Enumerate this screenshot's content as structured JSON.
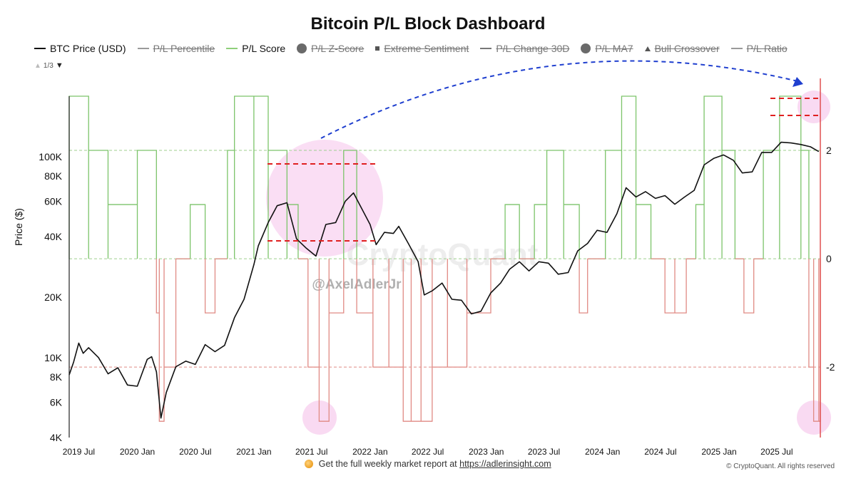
{
  "title": "Bitcoin P/L Block Dashboard",
  "legend": [
    {
      "label": "BTC Price (USD)",
      "icon": "line",
      "color": "#111111",
      "state": "active"
    },
    {
      "label": "P/L Percentile",
      "icon": "line",
      "color": "#9a9a9a",
      "state": "hidden"
    },
    {
      "label": "P/L Score",
      "icon": "line",
      "color": "#8fcf7a",
      "state": "active"
    },
    {
      "label": "P/L Z-Score",
      "icon": "dot",
      "color": "#6a6a6a",
      "state": "hidden"
    },
    {
      "label": "Extreme Sentiment",
      "icon": "square",
      "color": "#555555",
      "state": "hidden"
    },
    {
      "label": "P/L Change 30D",
      "icon": "line",
      "color": "#777777",
      "state": "hidden"
    },
    {
      "label": "P/L MA7",
      "icon": "dot",
      "color": "#6a6a6a",
      "state": "hidden"
    },
    {
      "label": "Bull Crossover",
      "icon": "triangle",
      "color": "#555555",
      "state": "hidden"
    },
    {
      "label": "P/L Ratio",
      "icon": "line",
      "color": "#9a9a9a",
      "state": "hidden"
    }
  ],
  "pager": {
    "text": "1/3"
  },
  "watermark": {
    "brand": "CryptoQuant",
    "handle": "@AxelAdlerJr"
  },
  "footer": {
    "text": "Get the full weekly market report at",
    "link": "https://adlerinsight.com"
  },
  "copyright": "© CryptoQuant. All rights reserved",
  "colors": {
    "price": "#111111",
    "score_pos": "#7cc46a",
    "score_neg": "#e08a84",
    "right_axis": "#e05050",
    "highlight": "#f3b6e6",
    "arrow": "#1f3fcf",
    "range": "#e02020"
  },
  "chart_data": {
    "type": "line",
    "ylabel": "Price ($)",
    "y_scale": "log",
    "ylim": [
      4000,
      200000
    ],
    "y_ticks": [
      4000,
      6000,
      8000,
      10000,
      20000,
      40000,
      60000,
      80000,
      100000
    ],
    "y_tick_labels": [
      "4K",
      "6K",
      "8K",
      "10K",
      "20K",
      "40K",
      "60K",
      "80K",
      "100K"
    ],
    "y2lim": [
      -3.3,
      3
    ],
    "y2_ticks": [
      -2,
      0,
      2
    ],
    "y2_tick_labels": [
      "-2",
      "0",
      "2"
    ],
    "xlim": [
      "2019-06-01",
      "2025-11-15"
    ],
    "x_ticks": [
      "2019-07-01",
      "2020-01-01",
      "2020-07-01",
      "2021-01-01",
      "2021-07-01",
      "2022-01-01",
      "2022-07-01",
      "2023-01-01",
      "2023-07-01",
      "2024-01-01",
      "2024-07-01",
      "2025-01-01",
      "2025-07-01"
    ],
    "x_tick_labels": [
      "2019 Jul",
      "2020 Jan",
      "2020 Jul",
      "2021 Jan",
      "2021 Jul",
      "2022 Jan",
      "2022 Jul",
      "2023 Jan",
      "2023 Jul",
      "2024 Jan",
      "2024 Jul",
      "2025 Jan",
      "2025 Jul"
    ],
    "reference_lines": [
      2,
      0,
      -2
    ],
    "series": [
      {
        "name": "BTC Price (USD)",
        "axis": "left",
        "x": [
          "2019-06-01",
          "2019-06-15",
          "2019-07-01",
          "2019-07-15",
          "2019-08-01",
          "2019-09-01",
          "2019-10-01",
          "2019-11-01",
          "2019-12-01",
          "2020-01-01",
          "2020-02-01",
          "2020-02-15",
          "2020-03-01",
          "2020-03-15",
          "2020-04-01",
          "2020-05-01",
          "2020-06-01",
          "2020-07-01",
          "2020-08-01",
          "2020-09-01",
          "2020-10-01",
          "2020-11-01",
          "2020-12-01",
          "2021-01-01",
          "2021-01-15",
          "2021-02-15",
          "2021-03-15",
          "2021-04-15",
          "2021-05-15",
          "2021-06-15",
          "2021-07-15",
          "2021-08-15",
          "2021-09-15",
          "2021-10-15",
          "2021-11-10",
          "2021-12-01",
          "2022-01-01",
          "2022-01-20",
          "2022-02-15",
          "2022-03-15",
          "2022-04-01",
          "2022-05-01",
          "2022-06-01",
          "2022-06-20",
          "2022-07-15",
          "2022-08-15",
          "2022-09-15",
          "2022-10-15",
          "2022-11-15",
          "2022-12-15",
          "2023-01-15",
          "2023-02-15",
          "2023-03-15",
          "2023-04-15",
          "2023-05-15",
          "2023-06-15",
          "2023-07-15",
          "2023-08-15",
          "2023-09-15",
          "2023-10-15",
          "2023-11-15",
          "2023-12-15",
          "2024-01-15",
          "2024-02-15",
          "2024-03-15",
          "2024-04-15",
          "2024-05-15",
          "2024-06-15",
          "2024-07-15",
          "2024-08-15",
          "2024-09-15",
          "2024-10-15",
          "2024-11-15",
          "2024-12-15",
          "2025-01-15",
          "2025-02-15",
          "2025-03-15",
          "2025-04-15",
          "2025-05-15",
          "2025-06-15",
          "2025-07-15",
          "2025-08-15",
          "2025-09-15",
          "2025-10-15",
          "2025-11-10"
        ],
        "values": [
          8200,
          9500,
          11800,
          10500,
          11200,
          10000,
          8300,
          8900,
          7300,
          7200,
          9800,
          10100,
          8500,
          5000,
          6700,
          9000,
          9600,
          9250,
          11600,
          10700,
          11500,
          15800,
          19500,
          29000,
          36000,
          47000,
          57000,
          59000,
          39000,
          35000,
          32000,
          46000,
          47000,
          60000,
          66000,
          57000,
          46000,
          36500,
          42000,
          41500,
          45000,
          37000,
          30000,
          20500,
          21500,
          23500,
          19500,
          19300,
          16500,
          17000,
          21000,
          23500,
          27500,
          30000,
          27000,
          30000,
          29500,
          26000,
          26500,
          34000,
          37000,
          43000,
          42000,
          52000,
          70000,
          63000,
          67000,
          62000,
          64000,
          58000,
          63000,
          68000,
          91000,
          98000,
          102000,
          96000,
          83000,
          84000,
          105000,
          105000,
          118000,
          117000,
          115000,
          112000,
          106000
        ]
      },
      {
        "name": "P/L Score",
        "axis": "right",
        "x": [
          "2019-06-01",
          "2019-08-01",
          "2019-10-01",
          "2020-01-01",
          "2020-03-01",
          "2020-03-10",
          "2020-03-25",
          "2020-05-01",
          "2020-06-15",
          "2020-08-01",
          "2020-09-01",
          "2020-10-10",
          "2020-11-01",
          "2021-01-01",
          "2021-02-15",
          "2021-04-15",
          "2021-05-20",
          "2021-06-20",
          "2021-07-25",
          "2021-08-25",
          "2021-10-10",
          "2021-11-20",
          "2022-01-10",
          "2022-03-01",
          "2022-04-15",
          "2022-05-10",
          "2022-06-10",
          "2022-07-15",
          "2022-09-01",
          "2022-11-01",
          "2023-01-15",
          "2023-03-01",
          "2023-04-15",
          "2023-06-01",
          "2023-07-10",
          "2023-09-01",
          "2023-10-20",
          "2023-11-15",
          "2024-01-10",
          "2024-03-01",
          "2024-04-15",
          "2024-06-01",
          "2024-07-15",
          "2024-08-15",
          "2024-09-20",
          "2024-10-20",
          "2024-11-15",
          "2025-01-10",
          "2025-02-20",
          "2025-03-20",
          "2025-04-20",
          "2025-05-20",
          "2025-07-10",
          "2025-09-15",
          "2025-10-10",
          "2025-10-25",
          "2025-11-10"
        ],
        "values": [
          3,
          2,
          1,
          2,
          -1,
          -3,
          -2,
          0,
          1,
          -1,
          0,
          2,
          3,
          3,
          2,
          1,
          0,
          -2,
          -3,
          -1,
          2,
          -1,
          -2,
          -2,
          -3,
          -3,
          -3,
          -2,
          -2,
          -1,
          0,
          1,
          0,
          1,
          2,
          1,
          -1,
          0,
          2,
          3,
          1,
          0,
          -1,
          -1,
          0,
          1,
          3,
          2,
          0,
          -1,
          0,
          2,
          3,
          2,
          -2,
          -3,
          -3
        ]
      }
    ]
  }
}
